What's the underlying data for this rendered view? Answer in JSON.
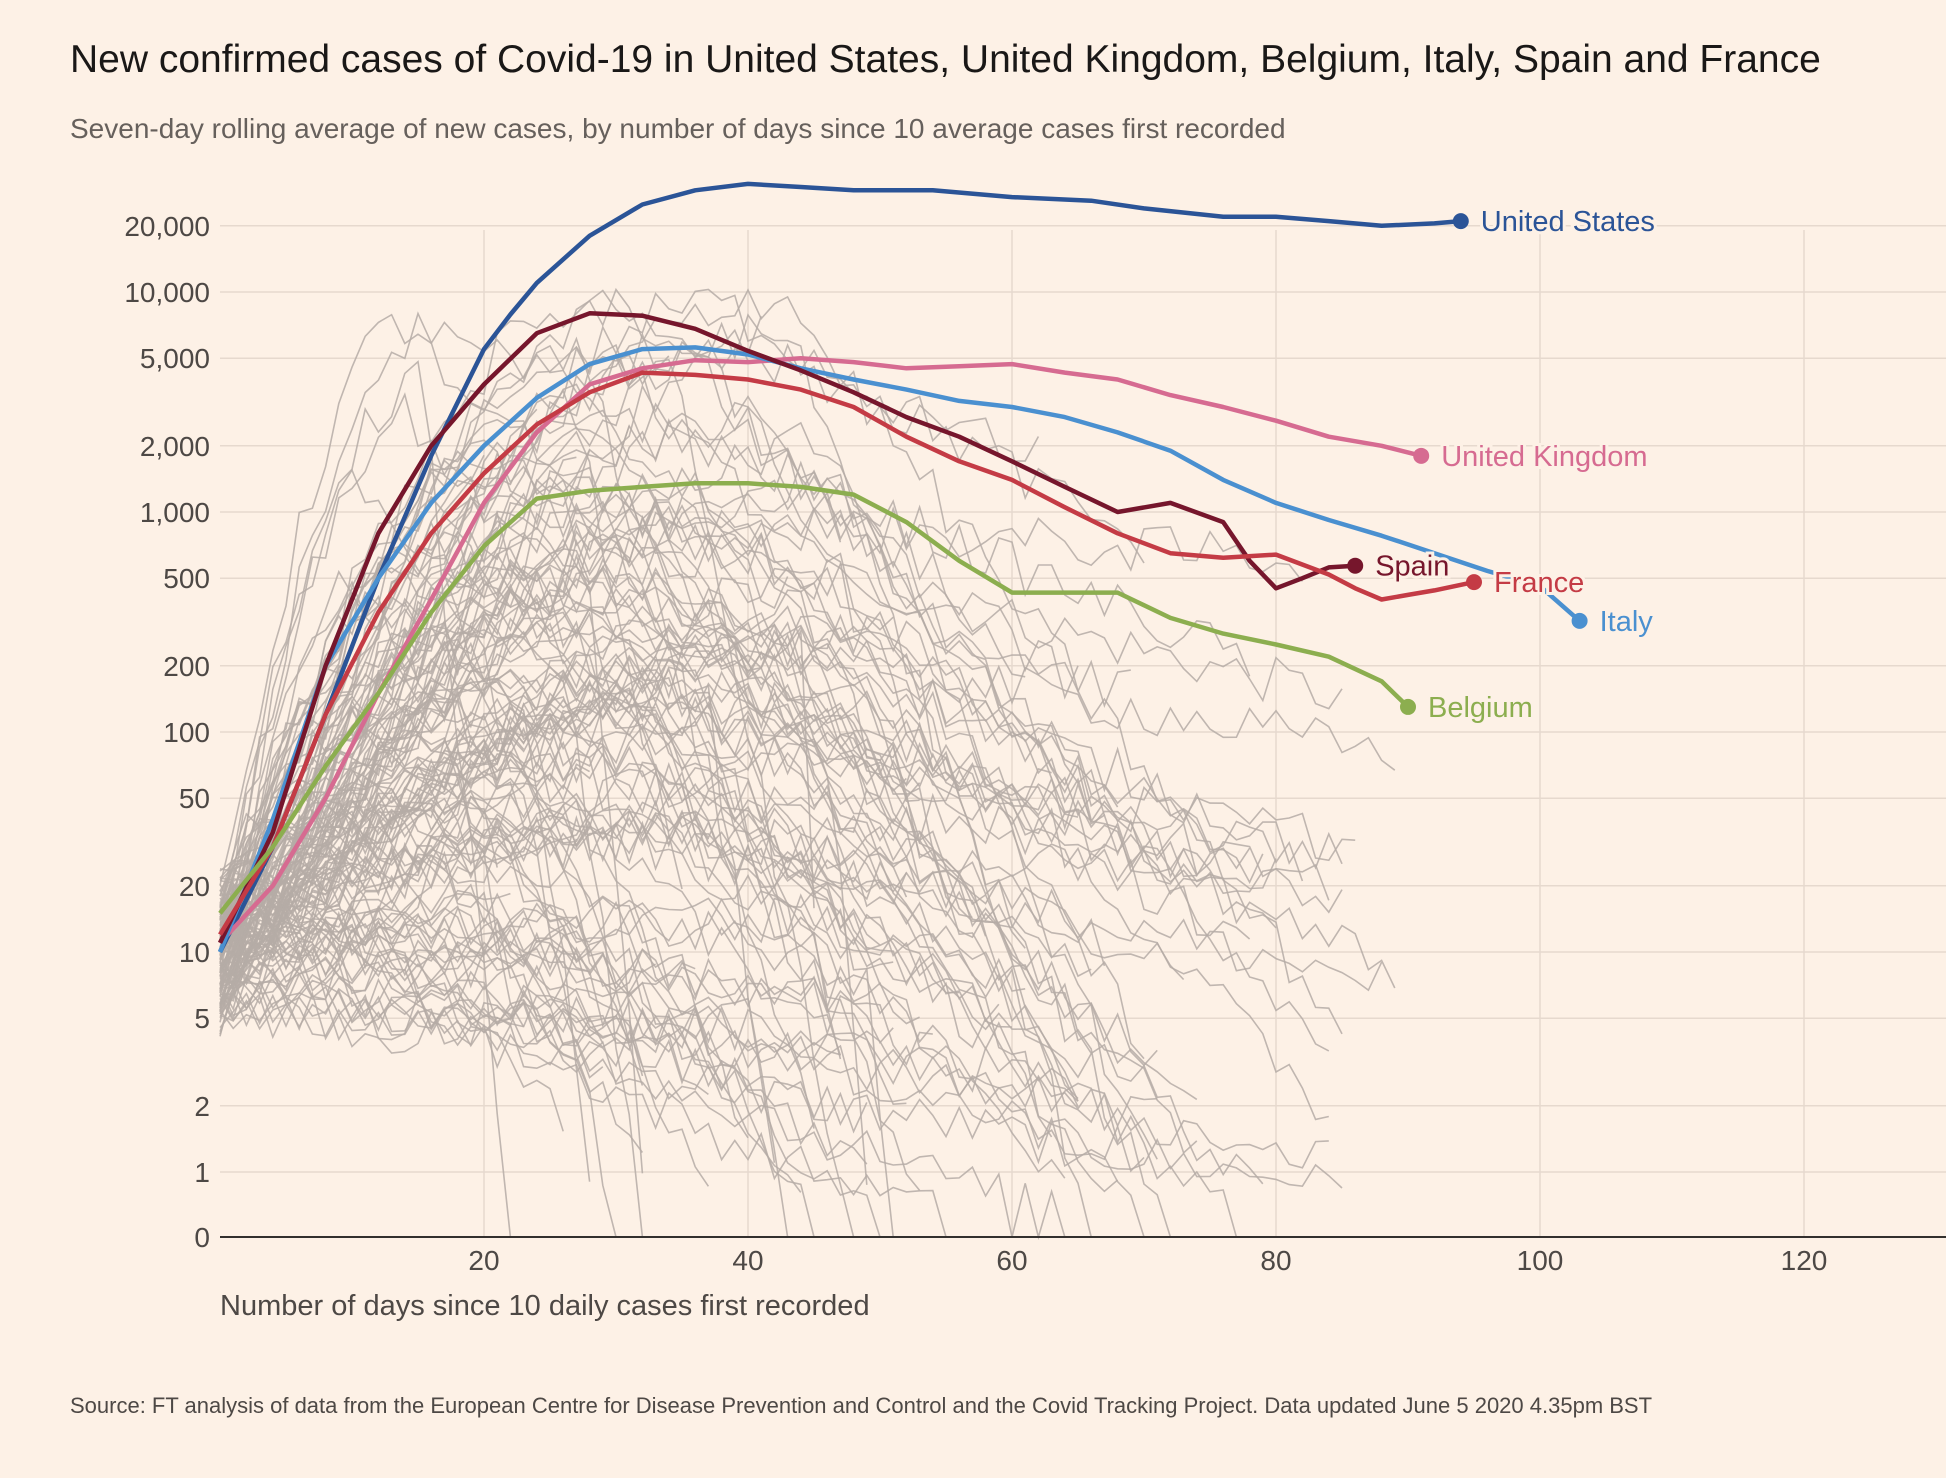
{
  "title": "New confirmed cases of Covid-19 in United States, United Kingdom, Belgium, Italy, Spain and France",
  "subtitle": "Seven-day rolling average of new cases, by number of days since 10 average cases first recorded",
  "source": "Source: FT analysis of data from the European Centre for Disease Prevention and Control and the Covid Tracking Project. Data updated June 5 2020 4.35pm BST",
  "chart_data": {
    "type": "line",
    "title": "New confirmed cases of Covid-19 in United States, United Kingdom, Belgium, Italy, Spain and France",
    "xlabel": "Number of days since 10 daily cases first recorded",
    "ylabel": "",
    "xlim": [
      0,
      130
    ],
    "yscale": "log",
    "ylim": [
      0,
      30000
    ],
    "x_ticks": [
      20,
      40,
      60,
      80,
      100,
      120
    ],
    "y_ticks": [
      {
        "value": 0,
        "label": "0"
      },
      {
        "value": 1,
        "label": "1"
      },
      {
        "value": 2,
        "label": "2"
      },
      {
        "value": 5,
        "label": "5"
      },
      {
        "value": 10,
        "label": "10"
      },
      {
        "value": 20,
        "label": "20"
      },
      {
        "value": 50,
        "label": "50"
      },
      {
        "value": 100,
        "label": "100"
      },
      {
        "value": 200,
        "label": "200"
      },
      {
        "value": 500,
        "label": "500"
      },
      {
        "value": 1000,
        "label": "1,000"
      },
      {
        "value": 2000,
        "label": "2,000"
      },
      {
        "value": 5000,
        "label": "5,000"
      },
      {
        "value": 10000,
        "label": "10,000"
      },
      {
        "value": 20000,
        "label": "20,000"
      }
    ],
    "grid": true,
    "legend": "direct labels at line ends",
    "background_series_color": "#b5aba6",
    "series": [
      {
        "name": "United States",
        "color": "#2b5497",
        "points": [
          [
            0,
            10
          ],
          [
            4,
            30
          ],
          [
            8,
            120
          ],
          [
            12,
            500
          ],
          [
            16,
            1800
          ],
          [
            20,
            5500
          ],
          [
            22,
            7900
          ],
          [
            24,
            11000
          ],
          [
            28,
            18000
          ],
          [
            32,
            25000
          ],
          [
            36,
            29000
          ],
          [
            40,
            31000
          ],
          [
            44,
            30000
          ],
          [
            48,
            29000
          ],
          [
            54,
            29000
          ],
          [
            60,
            27000
          ],
          [
            66,
            26000
          ],
          [
            70,
            24000
          ],
          [
            76,
            22000
          ],
          [
            80,
            22000
          ],
          [
            84,
            21000
          ],
          [
            88,
            20000
          ],
          [
            92,
            20500
          ],
          [
            94,
            21000
          ]
        ]
      },
      {
        "name": "United Kingdom",
        "color": "#d66b91",
        "points": [
          [
            0,
            11
          ],
          [
            4,
            20
          ],
          [
            8,
            50
          ],
          [
            12,
            150
          ],
          [
            16,
            400
          ],
          [
            20,
            1100
          ],
          [
            24,
            2300
          ],
          [
            28,
            3800
          ],
          [
            32,
            4500
          ],
          [
            36,
            4900
          ],
          [
            40,
            4800
          ],
          [
            44,
            5000
          ],
          [
            48,
            4800
          ],
          [
            52,
            4500
          ],
          [
            56,
            4600
          ],
          [
            60,
            4700
          ],
          [
            64,
            4300
          ],
          [
            68,
            4000
          ],
          [
            72,
            3400
          ],
          [
            76,
            3000
          ],
          [
            80,
            2600
          ],
          [
            84,
            2200
          ],
          [
            88,
            2000
          ],
          [
            91,
            1800
          ]
        ]
      },
      {
        "name": "Italy",
        "color": "#4a90d0",
        "points": [
          [
            0,
            10
          ],
          [
            4,
            40
          ],
          [
            8,
            200
          ],
          [
            12,
            500
          ],
          [
            16,
            1100
          ],
          [
            20,
            2000
          ],
          [
            24,
            3300
          ],
          [
            28,
            4700
          ],
          [
            32,
            5500
          ],
          [
            36,
            5600
          ],
          [
            40,
            5200
          ],
          [
            44,
            4500
          ],
          [
            48,
            4000
          ],
          [
            52,
            3600
          ],
          [
            56,
            3200
          ],
          [
            60,
            3000
          ],
          [
            64,
            2700
          ],
          [
            68,
            2300
          ],
          [
            72,
            1900
          ],
          [
            76,
            1400
          ],
          [
            80,
            1100
          ],
          [
            84,
            920
          ],
          [
            88,
            780
          ],
          [
            92,
            650
          ],
          [
            96,
            540
          ],
          [
            100,
            460
          ],
          [
            103,
            320
          ]
        ]
      },
      {
        "name": "Spain",
        "color": "#76162c",
        "points": [
          [
            0,
            11
          ],
          [
            4,
            35
          ],
          [
            8,
            200
          ],
          [
            12,
            800
          ],
          [
            16,
            2000
          ],
          [
            20,
            3800
          ],
          [
            24,
            6500
          ],
          [
            28,
            8000
          ],
          [
            32,
            7800
          ],
          [
            36,
            6800
          ],
          [
            40,
            5400
          ],
          [
            44,
            4400
          ],
          [
            48,
            3500
          ],
          [
            52,
            2700
          ],
          [
            56,
            2200
          ],
          [
            60,
            1700
          ],
          [
            64,
            1300
          ],
          [
            68,
            1000
          ],
          [
            72,
            1100
          ],
          [
            76,
            900
          ],
          [
            78,
            600
          ],
          [
            80,
            450
          ],
          [
            82,
            500
          ],
          [
            84,
            560
          ],
          [
            86,
            570
          ]
        ]
      },
      {
        "name": "France",
        "color": "#c43b45",
        "points": [
          [
            0,
            12
          ],
          [
            4,
            30
          ],
          [
            8,
            120
          ],
          [
            12,
            350
          ],
          [
            16,
            800
          ],
          [
            20,
            1500
          ],
          [
            24,
            2500
          ],
          [
            28,
            3500
          ],
          [
            32,
            4300
          ],
          [
            36,
            4200
          ],
          [
            40,
            4000
          ],
          [
            44,
            3600
          ],
          [
            48,
            3000
          ],
          [
            52,
            2200
          ],
          [
            56,
            1700
          ],
          [
            60,
            1400
          ],
          [
            64,
            1050
          ],
          [
            68,
            800
          ],
          [
            72,
            650
          ],
          [
            76,
            620
          ],
          [
            80,
            640
          ],
          [
            84,
            520
          ],
          [
            86,
            450
          ],
          [
            88,
            400
          ],
          [
            90,
            420
          ],
          [
            92,
            440
          ],
          [
            95,
            480
          ]
        ]
      },
      {
        "name": "Belgium",
        "color": "#8cae4f",
        "points": [
          [
            0,
            15
          ],
          [
            4,
            30
          ],
          [
            8,
            70
          ],
          [
            12,
            150
          ],
          [
            16,
            350
          ],
          [
            20,
            700
          ],
          [
            24,
            1150
          ],
          [
            28,
            1250
          ],
          [
            32,
            1300
          ],
          [
            36,
            1350
          ],
          [
            40,
            1350
          ],
          [
            44,
            1300
          ],
          [
            48,
            1200
          ],
          [
            52,
            900
          ],
          [
            56,
            600
          ],
          [
            60,
            430
          ],
          [
            64,
            430
          ],
          [
            68,
            430
          ],
          [
            72,
            330
          ],
          [
            76,
            280
          ],
          [
            80,
            250
          ],
          [
            84,
            220
          ],
          [
            88,
            170
          ],
          [
            90,
            130
          ]
        ]
      }
    ]
  }
}
